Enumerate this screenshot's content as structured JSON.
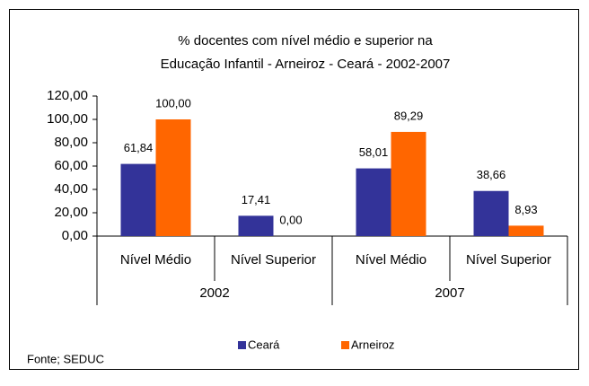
{
  "chart_data": {
    "type": "bar",
    "title": [
      "% docentes com nível médio e superior na",
      "Educação Infantil - Arneiroz -  Ceará - 2002-2007"
    ],
    "categories": [
      "Nível Médio",
      "Nível Superior",
      "Nível Médio",
      "Nível Superior"
    ],
    "groups": [
      {
        "name": "2002",
        "span": 2
      },
      {
        "name": "2007",
        "span": 2
      }
    ],
    "series": [
      {
        "name": "Ceará",
        "color": "#333399",
        "values": [
          61.84,
          17.41,
          58.01,
          38.66
        ],
        "value_labels": [
          "61,84",
          "17,41",
          "58,01",
          "38,66"
        ]
      },
      {
        "name": "Arneiroz",
        "color": "#ff6600",
        "values": [
          100,
          0,
          89.29,
          8.93
        ],
        "value_labels": [
          "100,00",
          "0,00",
          "89,29",
          "8,93"
        ]
      }
    ],
    "ylim": [
      0,
      120
    ],
    "yticks": [
      {
        "value": 0,
        "label": "0,00"
      },
      {
        "value": 20,
        "label": "20,00"
      },
      {
        "value": 40,
        "label": "40,00"
      },
      {
        "value": 60,
        "label": "60,00"
      },
      {
        "value": 80,
        "label": "80,00"
      },
      {
        "value": 100,
        "label": "100,00"
      },
      {
        "value": 120,
        "label": "120,00"
      }
    ],
    "grid": false,
    "legend": "bottom",
    "source": "Fonte; SEDUC"
  }
}
